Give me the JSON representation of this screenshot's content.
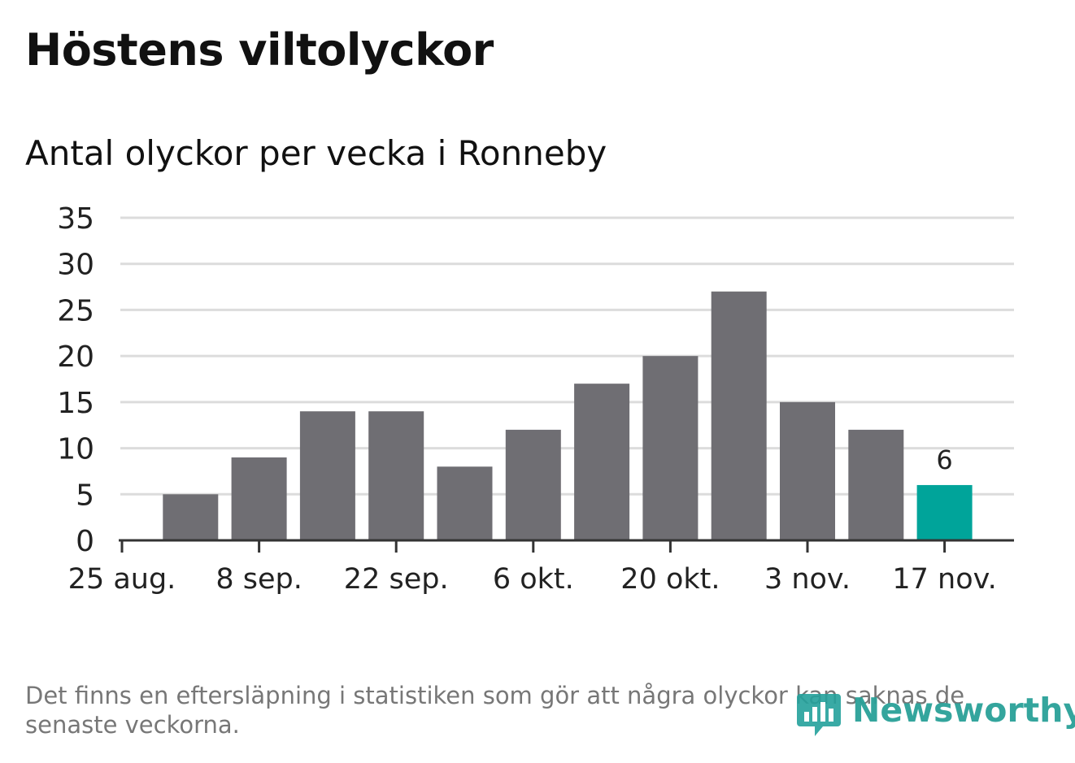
{
  "title": "Höstens viltolyckor",
  "subtitle": "Antal olyckor per vecka i Ronneby",
  "footnote": "Det finns en eftersläpning i statistiken som gör att några olyckor kan saknas de senaste veckorna.",
  "brand": {
    "name": "Newsworthy",
    "icon": "newsworthy-logo-icon",
    "color": "#24a19b"
  },
  "colors": {
    "bar": "#6f6e73",
    "highlight": "#00a49a",
    "grid": "#dcdcdc",
    "axis": "#333333",
    "text": "#222222"
  },
  "chart_data": {
    "type": "bar",
    "title": "Höstens viltolyckor",
    "subtitle": "Antal olyckor per vecka i Ronneby",
    "xlabel": "",
    "ylabel": "",
    "ylim": [
      0,
      35
    ],
    "yticks": [
      0,
      5,
      10,
      15,
      20,
      25,
      30,
      35
    ],
    "xticks": [
      "25 aug.",
      "8 sep.",
      "22 sep.",
      "6 okt.",
      "20 okt.",
      "3 nov.",
      "17 nov."
    ],
    "grid": true,
    "values": [
      5,
      9,
      14,
      14,
      8,
      12,
      17,
      20,
      27,
      15,
      12,
      6
    ],
    "highlight_last": true,
    "annotation": "6"
  }
}
